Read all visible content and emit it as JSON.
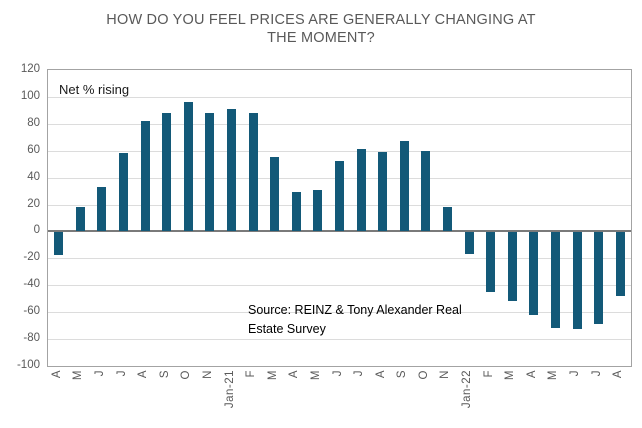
{
  "title": {
    "line1": "HOW DO YOU FEEL PRICES ARE GENERALLY CHANGING AT",
    "line2": "THE MOMENT?"
  },
  "plot_label": "Net % rising",
  "source": {
    "line1": "Source: REINZ & Tony Alexander Real",
    "line2": "Estate Survey"
  },
  "colors": {
    "bar": "#135978",
    "title_text": "#595959",
    "axis_text": "#595959",
    "gridline": "#dcdcdc",
    "zero_line": "#7a7a7a",
    "plot_border": "#a3a3a3"
  },
  "chart_data": {
    "type": "bar",
    "title": "HOW DO YOU FEEL PRICES ARE GENERALLY CHANGING AT THE MOMENT?",
    "ylabel": "Net % rising",
    "xlabel": "",
    "categories": [
      "A",
      "M",
      "J",
      "J",
      "A",
      "S",
      "O",
      "N",
      "Jan-21",
      "F",
      "M",
      "A",
      "M",
      "J",
      "J",
      "A",
      "S",
      "O",
      "N",
      "Jan-22",
      "F",
      "M",
      "A",
      "M",
      "J",
      "J",
      "A"
    ],
    "values": [
      -17,
      18,
      33,
      58,
      82,
      88,
      96,
      88,
      91,
      88,
      55,
      29,
      31,
      52,
      61,
      59,
      67,
      60,
      18,
      -16,
      -44,
      -51,
      -61,
      -71,
      -72,
      -68,
      -47
    ],
    "ylim": [
      -100,
      120
    ],
    "yticks": [
      120,
      100,
      80,
      60,
      40,
      20,
      0,
      -20,
      -40,
      -60,
      -80,
      -100
    ],
    "grid": true,
    "legend_position": "none"
  }
}
